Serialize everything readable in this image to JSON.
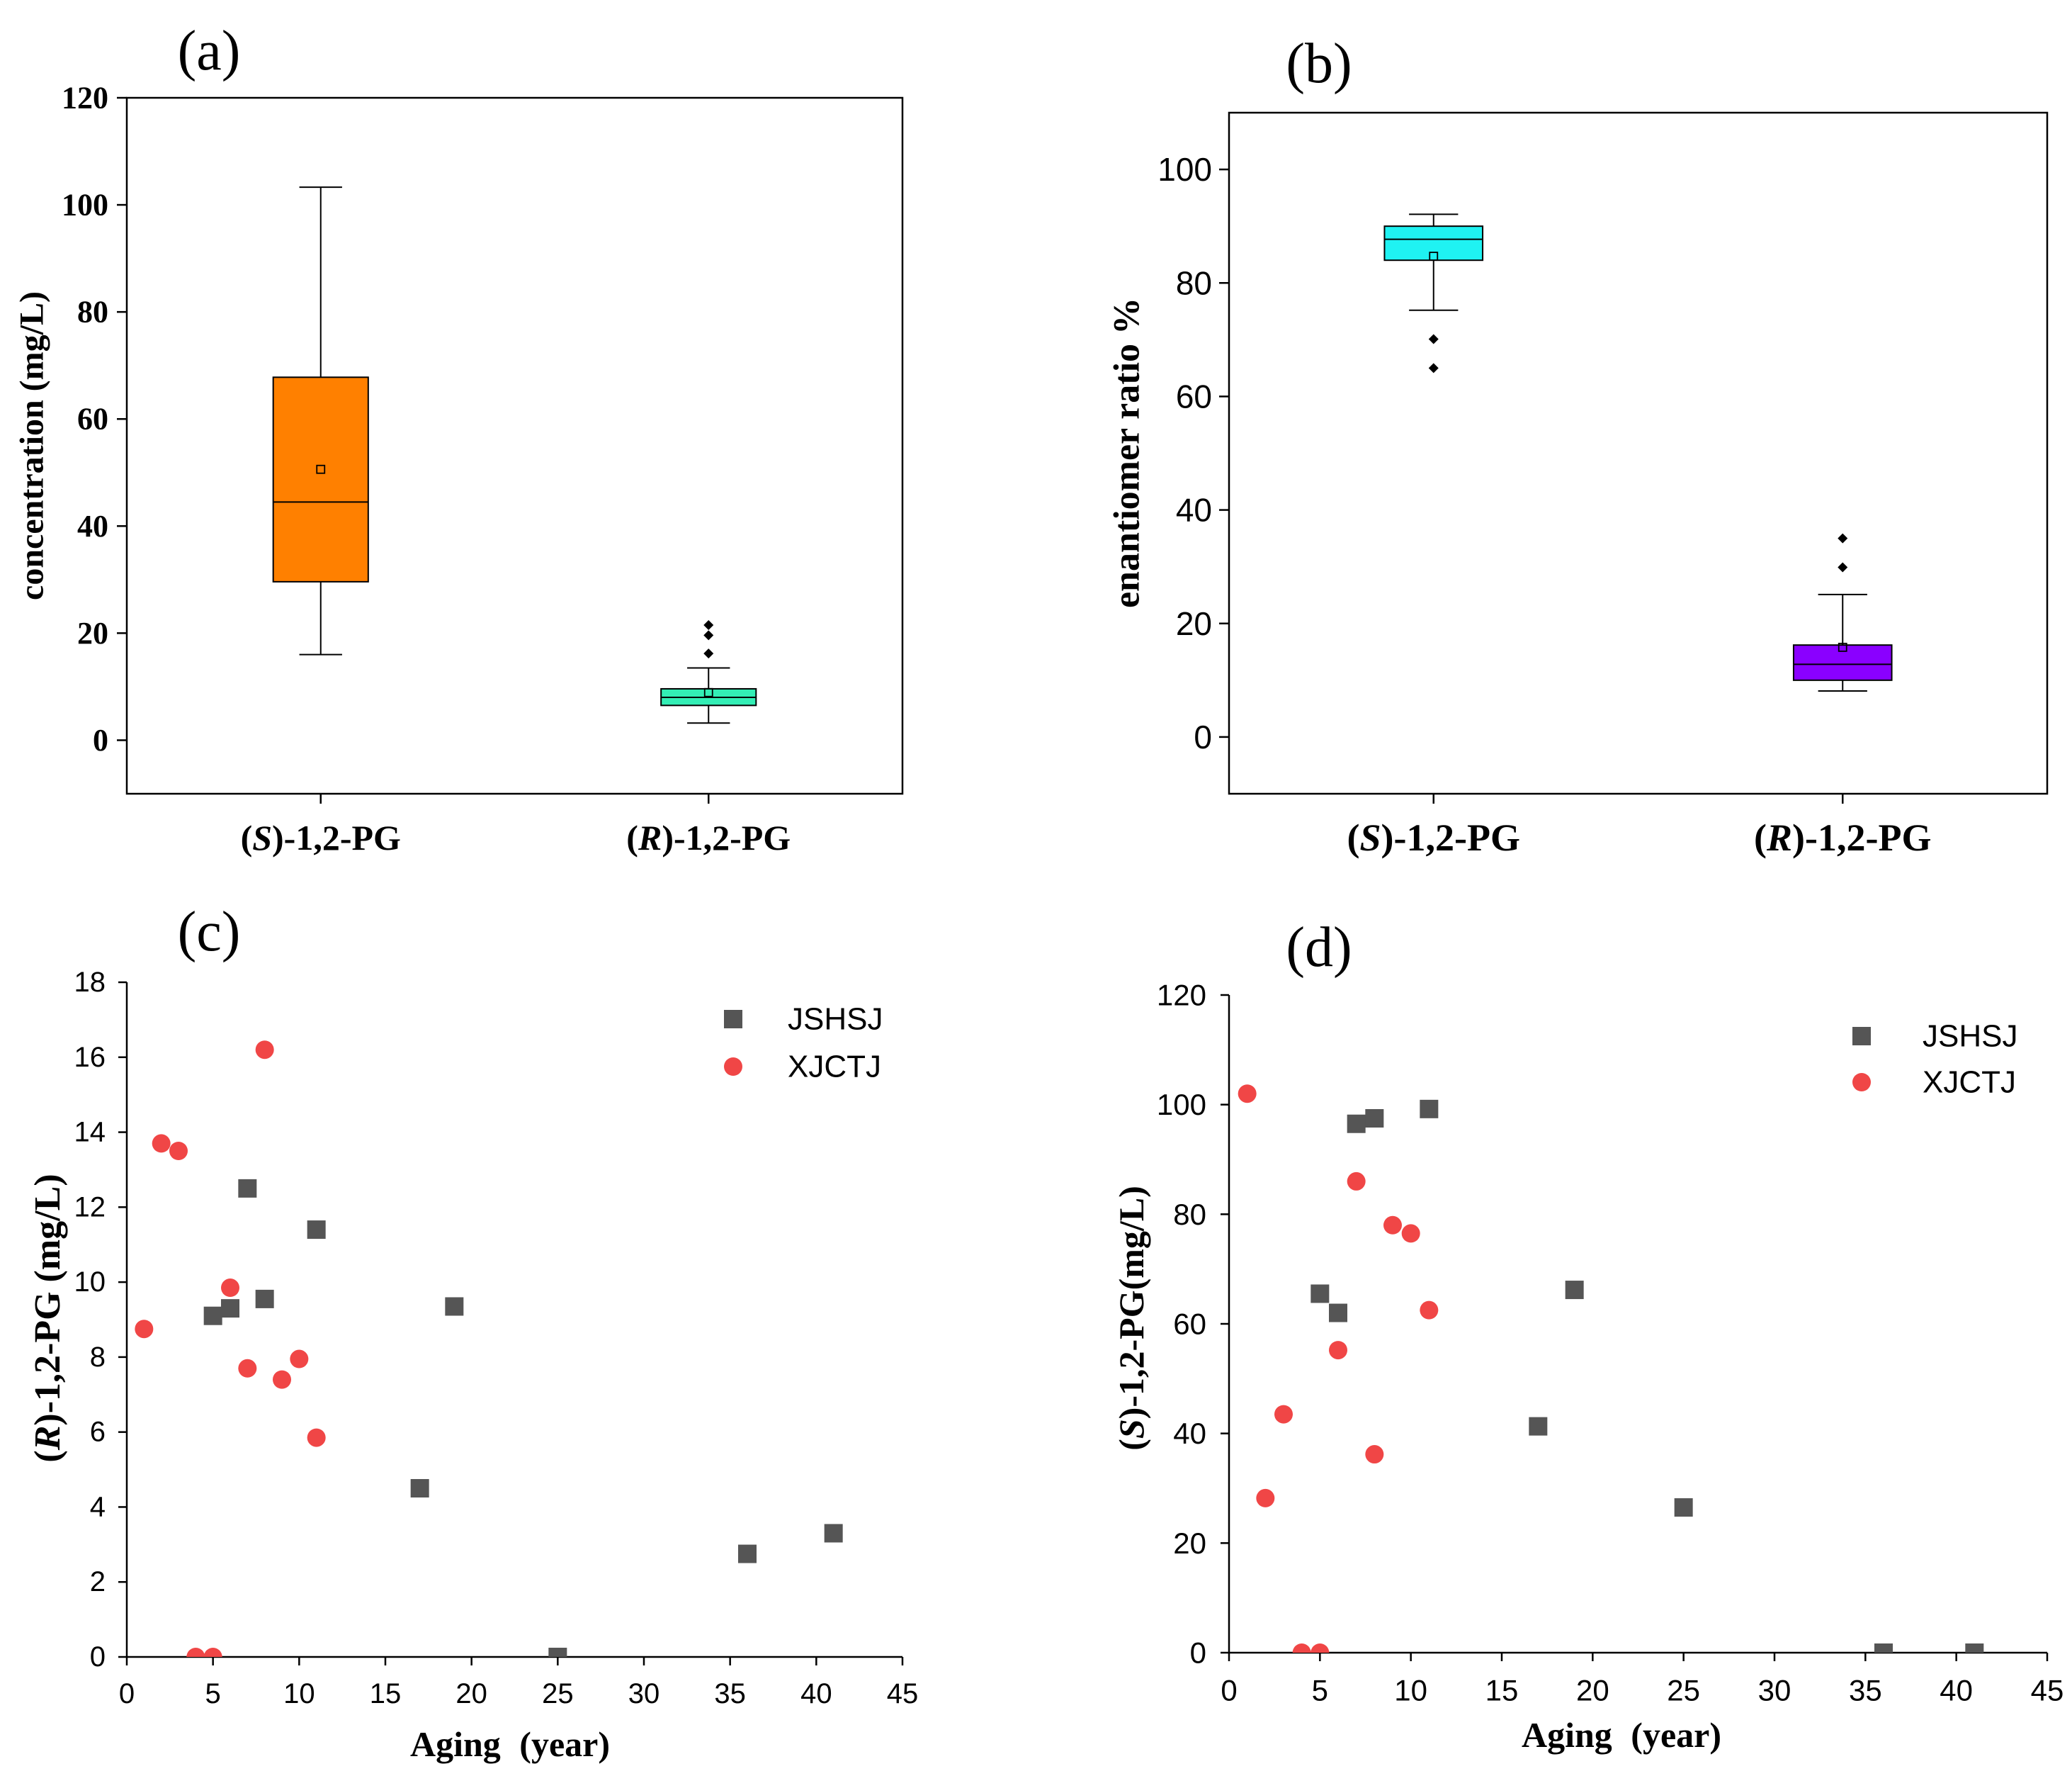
{
  "chart_data": [
    {
      "type": "box",
      "panel_label": "(a)",
      "ylabel": "concentration (mg/L)",
      "ylim": [
        -10,
        120
      ],
      "yticks": [
        0,
        20,
        40,
        60,
        80,
        100,
        120
      ],
      "categories": [
        "(S)-1,2-PG",
        "(R)-1,2-PG"
      ],
      "grid": false,
      "boxes": [
        {
          "whisker_low": 16.0,
          "q1": 29.6,
          "median": 44.5,
          "q3": 67.8,
          "whisker_high": 103.3,
          "mean": 50.6,
          "outliers": [],
          "color": "#FF8000"
        },
        {
          "whisker_low": 3.2,
          "q1": 6.5,
          "median": 8.0,
          "q3": 9.6,
          "whisker_high": 13.5,
          "mean": 8.9,
          "outliers": [
            16.2,
            19.6,
            21.5
          ],
          "color": "#33EEB5"
        }
      ]
    },
    {
      "type": "box",
      "panel_label": "(b)",
      "ylabel": "enantiomer ratio %",
      "ylim": [
        -10,
        110
      ],
      "yticks": [
        0,
        20,
        40,
        60,
        80,
        100
      ],
      "categories": [
        "(S)-1,2-PG",
        "(R)-1,2-PG"
      ],
      "grid": false,
      "boxes": [
        {
          "whisker_low": 75.2,
          "q1": 84.0,
          "median": 87.7,
          "q3": 90.0,
          "whisker_high": 92.1,
          "mean": 84.7,
          "outliers": [
            70.1,
            65.0
          ],
          "color": "#1FF2F2"
        },
        {
          "whisker_low": 8.1,
          "q1": 10.0,
          "median": 12.8,
          "q3": 16.2,
          "whisker_high": 25.1,
          "mean": 15.8,
          "outliers": [
            29.9,
            35.0
          ],
          "color": "#8A00FF"
        }
      ]
    },
    {
      "type": "scatter",
      "panel_label": "(c)",
      "xlabel": "Aging (year)",
      "ylabel": "(R)-1,2-PG (mg/L)",
      "xlim": [
        0,
        45
      ],
      "ylim": [
        0,
        18
      ],
      "xticks": [
        0,
        5,
        10,
        15,
        20,
        25,
        30,
        35,
        40,
        45
      ],
      "yticks": [
        0,
        2,
        4,
        6,
        8,
        10,
        12,
        14,
        16,
        18
      ],
      "legend_position": "top-right",
      "grid": false,
      "series": [
        {
          "name": "JSHSJ",
          "marker": "square",
          "color": "#555555",
          "points": [
            [
              5,
              9.1
            ],
            [
              6,
              9.3
            ],
            [
              7,
              12.5
            ],
            [
              8,
              9.55
            ],
            [
              11,
              11.4
            ],
            [
              17,
              4.5
            ],
            [
              19,
              9.35
            ],
            [
              25,
              0
            ],
            [
              36,
              2.75
            ],
            [
              41,
              3.3
            ]
          ]
        },
        {
          "name": "XJCTJ",
          "marker": "circle",
          "color": "#F04646",
          "points": [
            [
              1,
              8.75
            ],
            [
              2,
              13.7
            ],
            [
              3,
              13.5
            ],
            [
              4,
              0
            ],
            [
              5,
              0
            ],
            [
              6,
              9.85
            ],
            [
              7,
              7.7
            ],
            [
              8,
              16.2
            ],
            [
              9,
              7.4
            ],
            [
              10,
              7.95
            ],
            [
              11,
              5.85
            ]
          ]
        }
      ]
    },
    {
      "type": "scatter",
      "panel_label": "(d)",
      "xlabel": "Aging (year)",
      "ylabel": "(S)-1,2-PG(mg/L)",
      "xlim": [
        0,
        45
      ],
      "ylim": [
        0,
        120
      ],
      "xticks": [
        0,
        5,
        10,
        15,
        20,
        25,
        30,
        35,
        40,
        45
      ],
      "yticks": [
        0,
        20,
        40,
        60,
        80,
        100,
        120
      ],
      "legend_position": "top-right",
      "grid": false,
      "series": [
        {
          "name": "JSHSJ",
          "marker": "square",
          "color": "#555555",
          "points": [
            [
              5,
              65.5
            ],
            [
              6,
              62
            ],
            [
              7,
              96.5
            ],
            [
              8,
              97.5
            ],
            [
              11,
              99.2
            ],
            [
              17,
              41.3
            ],
            [
              19,
              66.2
            ],
            [
              25,
              26.5
            ],
            [
              36,
              0
            ],
            [
              41,
              0
            ]
          ]
        },
        {
          "name": "XJCTJ",
          "marker": "circle",
          "color": "#F04646",
          "points": [
            [
              1,
              102
            ],
            [
              2,
              28.2
            ],
            [
              3,
              43.5
            ],
            [
              4,
              0
            ],
            [
              5,
              0
            ],
            [
              6,
              55.2
            ],
            [
              7,
              86
            ],
            [
              8,
              36.2
            ],
            [
              9,
              78
            ],
            [
              10,
              76.5
            ],
            [
              11,
              62.5
            ]
          ]
        }
      ]
    }
  ]
}
